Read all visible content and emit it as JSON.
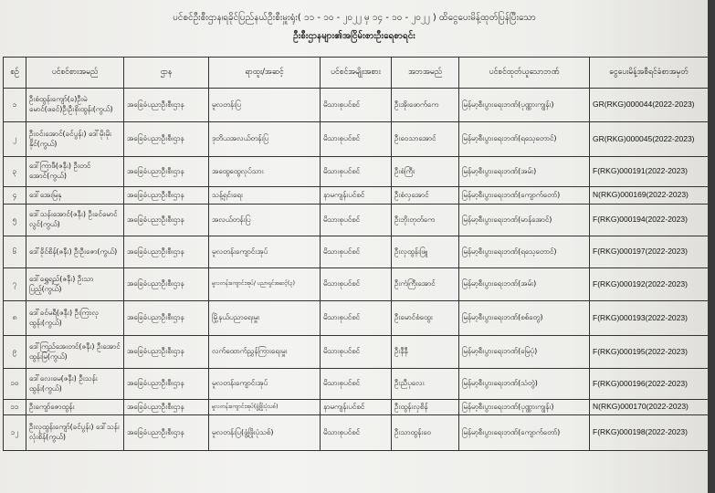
{
  "title": "ပင်စင်ဦးစီးဌာန၊ရခိုင်ပြည်နယ်ဦးစီးမှူးရုံး( ၁၁ - ၁၀ - ၂၀၂၂ မှ ၁၄ - ၁၀ - ၂၀၂၂ ) ထိငွေပေးမိန့်ထုတ်ပြန်ပြီးသော",
  "subtitle": "ဦးစီးဌာနများ၏အငြိမ်းစားဦးရေစာရင်း",
  "headers": [
    "စဉ်",
    "ပင်စင်စားအမည်",
    "ဌာန",
    "ရာထူး/အဆင့်",
    "ပင်စင်အမျိုးအစား",
    "အဘအမည်",
    "ပင်စင်ထုတ်ယူသောဘဏ်",
    "ငွေပေးမိန့်အစီရင်ခံစာအမှတ်"
  ],
  "rows": [
    {
      "no": "၁",
      "name": "ဦးစံထွန်းကျော်(ခ)ဦးမဲမောင်(ဖခင်)ဦးဦးစိုးထွန်း(ကွယ်)",
      "dept": "အခြေခံပညာဦးစီးဌာန",
      "rank": "မူလတန်းပြ",
      "type": "မိသားစုပင်စင်",
      "father": "ဦးအိုးဖောက်ကေ",
      "bank": "မြန်မာ့စီးပွားရေးဘဏ်(ပုဏ္ဏားကျွန်း)",
      "code": "GR(RKG)000044(2022-2023)"
    },
    {
      "no": "၂",
      "name": "ဦးဝင်းအောင်(ခင်ပွန်း) ဒေါ်မိုးမိုးနိုင်(ကွယ်)",
      "dept": "အခြေခံပညာဦးစီးဌာန",
      "rank": "ဒုတိယအလယ်တန်းပြ",
      "type": "မိသားစုပင်စင်",
      "father": "ဦးဝေသာအောင်",
      "bank": "မြန်မာ့စီးပွားရေးဘဏ်(ရသေ့တောင်)",
      "code": "GR(RKG)000045(2022-2023)"
    },
    {
      "no": "၃",
      "name": "ဒေါ်ကြာဖီ(ဇနီး) ဦးတင်အောင်(ကွယ်)",
      "dept": "အခြေခံပညာဦးစီးဌာန",
      "rank": "အထွေထွေလုပ်သား",
      "type": "မိသားစုပင်စင်",
      "father": "ဦးစံကြီး",
      "bank": "မြန်မာ့စီးပွားရေးဘဏ်(အမ်း)",
      "code": "F(RKG)000191(2022-2023)"
    },
    {
      "no": "၄",
      "name": "ဒေါ်အေးမြနု",
      "dept": "အခြေခံပညာဦးစီးဌာန",
      "rank": "သန့်ရှင်းရေး",
      "type": "နာမကျန်းပင်စင်",
      "father": "ဦးစံလှအောင်",
      "bank": "မြန်မာ့စီးပွားရေးဘဏ်(ကျောက်တော်)",
      "code": "N(RKG)000169(2022-2023)"
    },
    {
      "no": "၅",
      "name": "ဒေါ်သန်းအောင်(ဇနီး) ဦးခင်မောင်လွင်(ကွယ်)",
      "dept": "အခြေခံပညာဦးစီးဌာန",
      "rank": "အလယ်တန်းပြ",
      "type": "မိသားစုပင်စင်",
      "father": "ဦးဘိုးတုတ်ကေ",
      "bank": "မြန်မာ့စီးပွားရေးဘဏ်(မာန်အောင်)",
      "code": "F(RKG)000194(2022-2023)"
    },
    {
      "no": "၆",
      "name": "ဒေါ်ခိုင်စိန်(ဇနီး) ဦးဦးဇော(ကွယ်)",
      "dept": "အခြေခံပညာဦးစီးဌာန",
      "rank": "မူလတန်းကျောင်းအုပ်",
      "type": "မိသားစုပင်စင်",
      "father": "ဦးလှထွန်းဖြူ",
      "bank": "မြန်မာ့စီးပွားရေးဘဏ်(ရသေ့တောင်)",
      "code": "F(RKG)000197(2022-2023)"
    },
    {
      "no": "၇",
      "name": "ဒေါ်ရွှေရည်(ဇနီး) ဦးသာပြည့်(ကွယ်)",
      "dept": "အခြေခံပညာဦးစီးဌာန",
      "rank": "မူလတန်းကျောင်းအုပ်/ ပညာရှင်အဆင့်(၃)",
      "type": "မိသားစုပင်စင်",
      "father": "ဦးကံကြီးအောင်",
      "bank": "မြန်မာ့စီးပွားရေးဘဏ်(အမ်း)",
      "code": "F(RKG)000192(2022-2023)"
    },
    {
      "no": "၈",
      "name": "ဒေါ်ခင်မရီ(ဇနီး) ဦးကြာလှထွန်း(ကွယ်)",
      "dept": "အခြေခံပညာဦးစီးဌာန",
      "rank": "မြို့နယ်ပညာရေးမှူး",
      "type": "မိသားစုပင်စင်",
      "father": "ဦးမောင်စံထွေး",
      "bank": "မြန်မာ့စီးပွားရေးဘဏ်(စစ်တွေ)",
      "code": "F(RKG)000193(2022-2023)"
    },
    {
      "no": "၉",
      "name": "ဒေါ်ကြည်အေးတင်(ဇနီး) ဦးအောင်ထွန်းမြ(ကွယ်)",
      "dept": "အခြေခံပညာဦးစီးဌာန",
      "rank": "လက်ထောက်ညွှန်ကြားရေးမှူး",
      "type": "မိသားစုပင်စင်",
      "father": "ဦးနီနီ",
      "bank": "မြန်မာ့စီးပွားရေးဘဏ်(မြေပုံ)",
      "code": "F(RKG)000195(2022-2023)"
    },
    {
      "no": "၁၀",
      "name": "ဒေါ်လေးမေ(ဇနီး) ဦးသန်းထွန်း(ကွယ်)",
      "dept": "အခြေခံပညာဦးစီးဌာန",
      "rank": "မူလတန်းကျောင်းအုပ်",
      "type": "မိသားစုပင်စင်",
      "father": "ဦးညီပုလေး",
      "bank": "မြန်မာ့စီးပွားရေးဘဏ်(သံတွဲ)",
      "code": "F(RKG)000196(2022-2023)"
    },
    {
      "no": "၁၁",
      "name": "ဦးကျော်ဇောထွန်း",
      "dept": "အခြေခံပညာဦးစီးဌာန",
      "rank": "မူလတန်းကျောင်းအုပ်(ဖွံ့ဖြိုးပုံသစ်)",
      "type": "နာမကျန်းပင်စင်",
      "father": "ဦးထွန်းလှစိန်",
      "bank": "မြန်မာ့စီးပွားရေးဘဏ်(ပုဏ္ဏားကျွန်း)",
      "code": "N(RKG)000170(2022-2023)"
    },
    {
      "no": "၁၂",
      "name": "ဦးလှထွန်းကျော်(ခင်ပွန်း) ဒေါ်သန်းလုံးစိန်(ကွယ်)",
      "dept": "အခြေခံပညာဦးစီးဌာန",
      "rank": "မူလတန်းပြ(ဖွံ့ဖြိုးပုံသစ်)",
      "type": "မိသားစုပင်စင်",
      "father": "ဦးသာထွန်းဝေ",
      "bank": "မြန်မာ့စီးပွားရေးဘဏ်(ကျောက်တော်)",
      "code": "F(RKG)000198(2022-2023)"
    }
  ]
}
